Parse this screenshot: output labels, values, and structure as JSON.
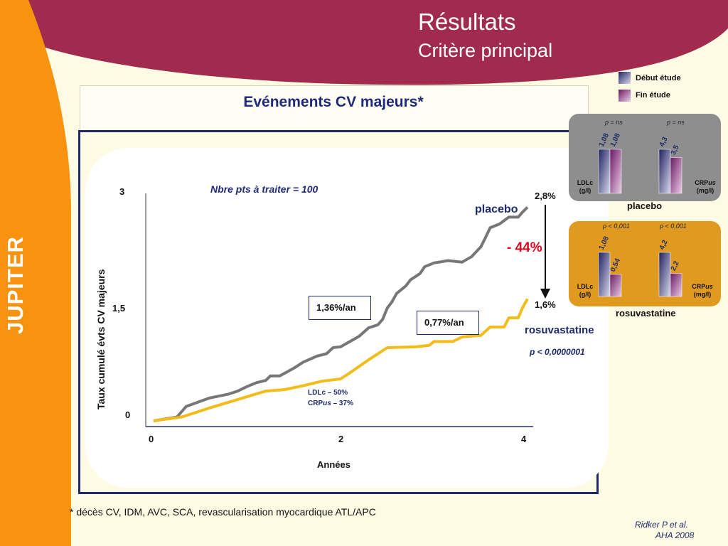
{
  "header": {
    "title": "Résultats",
    "subtitle": "Critère principal",
    "side_label": "JUPITER"
  },
  "chart_heading": "Evénements CV majeurs*",
  "legend": {
    "items": [
      {
        "label": "Début étude",
        "color": "#2d2f6b"
      },
      {
        "label": "Fin étude",
        "color": "#7a1f6e"
      }
    ]
  },
  "main_chart": {
    "annotation_nnt": "Nbre pts à traiter = 100",
    "placebo_end": "2,8%",
    "rosuva_end": "1,6%",
    "placebo_label": "placebo",
    "rosuva_label": "rosuvastatine",
    "reduction": "- 44%",
    "pvalue": "p < 0,0000001",
    "rate_placebo": "1,36%/an",
    "rate_rosuva": "0,77%/an",
    "ldl_note": "LDLc – 50%",
    "crp_note_prefix": "CRP",
    "crp_note_us": "us",
    "crp_note_suffix": " – 37%"
  },
  "footnote": "* décès CV, IDM, AVC, SCA, revascularisation myocardique ATL/APC",
  "citation": {
    "line1": "Ridker  P  et al.",
    "line2": "AHA 2008"
  },
  "panels": {
    "placebo": {
      "caption": "placebo",
      "p_ldl": "p = ns",
      "p_crp": "p = ns",
      "ldl_label_1": "LDLc",
      "ldl_label_2": "(g/l)",
      "crp_label_1": "CRP",
      "crp_label_us": "us",
      "crp_label_2": "(mg/l)"
    },
    "rosuva": {
      "caption": "rosuvastatine",
      "p_ldl": "p < 0,001",
      "p_crp": "p < 0,001",
      "ldl_label_1": "LDLc",
      "ldl_label_2": "(g/l)",
      "crp_label_1": "CRP",
      "crp_label_us": "us",
      "crp_label_2": "(mg/l)"
    }
  },
  "chart_data": [
    {
      "type": "line",
      "ylabel": "Taux cumulé évts CV majeurs",
      "xlabel": "Années",
      "xlim": [
        0,
        4
      ],
      "ylim": [
        0,
        3
      ],
      "x_ticks": [
        "0",
        "2",
        "4"
      ],
      "y_ticks": [
        "0",
        "1,5",
        "3"
      ],
      "series": [
        {
          "name": "placebo",
          "color": "#777777",
          "points": [
            [
              0,
              0
            ],
            [
              0.25,
              0.05
            ],
            [
              0.35,
              0.19
            ],
            [
              0.6,
              0.3
            ],
            [
              0.8,
              0.35
            ],
            [
              0.9,
              0.39
            ],
            [
              1.0,
              0.45
            ],
            [
              1.1,
              0.5
            ],
            [
              1.2,
              0.53
            ],
            [
              1.25,
              0.59
            ],
            [
              1.35,
              0.59
            ],
            [
              1.5,
              0.69
            ],
            [
              1.6,
              0.77
            ],
            [
              1.75,
              0.85
            ],
            [
              1.85,
              0.88
            ],
            [
              1.92,
              0.96
            ],
            [
              2.0,
              0.97
            ],
            [
              2.1,
              1.04
            ],
            [
              2.2,
              1.11
            ],
            [
              2.3,
              1.22
            ],
            [
              2.4,
              1.26
            ],
            [
              2.45,
              1.33
            ],
            [
              2.5,
              1.48
            ],
            [
              2.55,
              1.56
            ],
            [
              2.6,
              1.67
            ],
            [
              2.7,
              1.77
            ],
            [
              2.75,
              1.85
            ],
            [
              2.85,
              1.93
            ],
            [
              2.9,
              2.02
            ],
            [
              3.0,
              2.07
            ],
            [
              3.15,
              2.1
            ],
            [
              3.3,
              2.08
            ],
            [
              3.4,
              2.15
            ],
            [
              3.5,
              2.28
            ],
            [
              3.55,
              2.4
            ],
            [
              3.6,
              2.53
            ],
            [
              3.7,
              2.58
            ],
            [
              3.8,
              2.67
            ],
            [
              3.9,
              2.67
            ],
            [
              3.95,
              2.74
            ],
            [
              4.0,
              2.8
            ]
          ]
        },
        {
          "name": "rosuvastatine",
          "color": "#f2bc1b",
          "points": [
            [
              0,
              0
            ],
            [
              0.3,
              0.05
            ],
            [
              0.6,
              0.17
            ],
            [
              0.9,
              0.28
            ],
            [
              1.2,
              0.39
            ],
            [
              1.4,
              0.41
            ],
            [
              1.6,
              0.46
            ],
            [
              1.8,
              0.52
            ],
            [
              2.0,
              0.55
            ],
            [
              2.1,
              0.63
            ],
            [
              2.3,
              0.8
            ],
            [
              2.5,
              0.96
            ],
            [
              2.8,
              0.97
            ],
            [
              2.95,
              0.99
            ],
            [
              3.0,
              1.04
            ],
            [
              3.2,
              1.04
            ],
            [
              3.3,
              1.1
            ],
            [
              3.5,
              1.12
            ],
            [
              3.6,
              1.23
            ],
            [
              3.75,
              1.23
            ],
            [
              3.8,
              1.35
            ],
            [
              3.9,
              1.35
            ],
            [
              3.95,
              1.49
            ],
            [
              4.0,
              1.6
            ]
          ]
        }
      ]
    },
    {
      "type": "bar",
      "title": "placebo",
      "categories": [
        "LDLc (g/l)",
        "CRPus (mg/l)"
      ],
      "series": [
        {
          "name": "Début étude",
          "values": [
            1.08,
            4.3
          ]
        },
        {
          "name": "Fin étude",
          "values": [
            1.08,
            3.5
          ]
        }
      ],
      "value_labels": [
        [
          "1,08",
          "4,3"
        ],
        [
          "1,08",
          "3,5"
        ]
      ]
    },
    {
      "type": "bar",
      "title": "rosuvastatine",
      "categories": [
        "LDLc (g/l)",
        "CRPus (mg/l)"
      ],
      "series": [
        {
          "name": "Début étude",
          "values": [
            1.08,
            4.2
          ]
        },
        {
          "name": "Fin étude",
          "values": [
            0.54,
            2.2
          ]
        }
      ],
      "value_labels": [
        [
          "1,08",
          "4,2"
        ],
        [
          "0,54",
          "2,2"
        ]
      ]
    }
  ]
}
